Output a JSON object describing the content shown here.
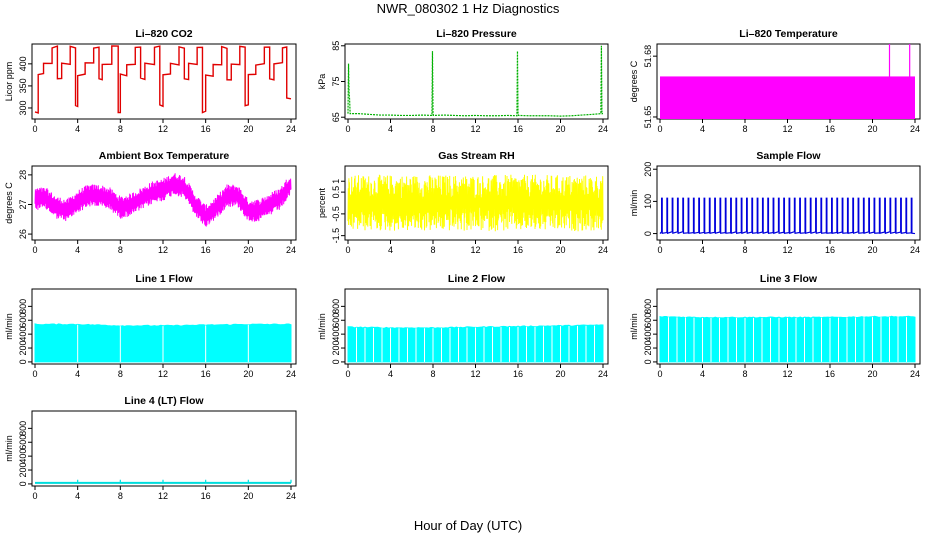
{
  "title": "NWR_080302  1 Hz Diagnostics",
  "xlabel": "Hour of Day (UTC)",
  "chart_data": [
    {
      "type": "line",
      "title": "Li–820 CO2",
      "ylabel": "Licor ppm",
      "color": "#e00000",
      "xlim": [
        0,
        24
      ],
      "ylim": [
        275,
        445
      ],
      "xticks": [
        0,
        4,
        8,
        12,
        16,
        20,
        24
      ],
      "yticks": [
        300,
        350,
        400
      ],
      "series": [
        {
          "x": [
            0,
            0.3,
            0.3,
            0.8,
            0.8,
            1.6,
            1.6,
            2.1,
            2.1,
            2.5,
            2.5,
            3.3,
            3.3,
            3.8,
            3.8,
            4.0,
            4.0,
            4.7,
            4.7,
            5.5,
            5.5,
            6.0,
            6.0,
            6.3,
            6.3,
            7.2,
            7.2,
            7.8,
            7.8,
            8.0,
            8.0,
            8.6,
            8.6,
            9.4,
            9.4,
            9.9,
            9.9,
            10.3,
            10.3,
            11.2,
            11.2,
            11.7,
            11.7,
            12.0,
            12.0,
            12.7,
            12.7,
            13.5,
            13.5,
            14.0,
            14.0,
            14.4,
            14.4,
            15.2,
            15.2,
            15.7,
            15.7,
            16.0,
            16.0,
            16.7,
            16.7,
            17.5,
            17.5,
            18.0,
            18.0,
            18.4,
            18.4,
            19.2,
            19.2,
            19.7,
            19.7,
            20.0,
            20.0,
            20.7,
            20.7,
            21.5,
            21.5,
            22.0,
            22.0,
            22.4,
            22.4,
            23.2,
            23.2,
            23.6,
            23.6,
            24.0
          ],
          "y": [
            290,
            290,
            375,
            375,
            400,
            400,
            438,
            438,
            365,
            365,
            400,
            400,
            438,
            438,
            305,
            305,
            375,
            375,
            400,
            400,
            438,
            438,
            365,
            365,
            400,
            400,
            438,
            438,
            290,
            290,
            375,
            375,
            400,
            400,
            438,
            438,
            365,
            365,
            400,
            400,
            438,
            438,
            305,
            305,
            375,
            375,
            400,
            400,
            438,
            438,
            365,
            365,
            400,
            400,
            438,
            438,
            290,
            290,
            375,
            375,
            400,
            400,
            438,
            438,
            365,
            365,
            400,
            400,
            438,
            438,
            305,
            305,
            375,
            375,
            400,
            400,
            438,
            438,
            365,
            365,
            400,
            400,
            438,
            438,
            320,
            320
          ]
        }
      ]
    },
    {
      "type": "line",
      "title": "Li–820 Pressure",
      "ylabel": "kPa",
      "color": "#00b000",
      "xlim": [
        0,
        24
      ],
      "ylim": [
        64.5,
        85.5
      ],
      "xticks": [
        0,
        4,
        8,
        12,
        16,
        20,
        24
      ],
      "yticks": [
        65,
        75,
        85
      ],
      "series": [
        {
          "x": [
            0,
            0.05,
            0.1,
            0.15,
            0.2,
            0.25,
            0.3,
            1,
            2,
            3,
            4,
            5,
            6,
            7,
            7.9,
            7.95,
            8.0,
            8.05,
            9,
            10,
            11,
            12,
            13,
            14,
            15,
            15.9,
            15.95,
            16.0,
            16.05,
            17,
            18,
            19,
            20,
            21,
            22,
            23,
            23.8,
            23.85,
            23.9,
            23.95,
            24.0
          ],
          "y": [
            66,
            80,
            72,
            70,
            66,
            66,
            66,
            66,
            65.8,
            65.6,
            65.6,
            65.5,
            65.5,
            65.6,
            65.5,
            83.5,
            66,
            65.5,
            65.6,
            65.5,
            65.4,
            65.5,
            65.4,
            65.4,
            65.5,
            65.4,
            83.5,
            66,
            65.5,
            65.4,
            65.4,
            65.4,
            65.3,
            65.4,
            65.6,
            65.8,
            66,
            85,
            66,
            66,
            66
          ]
        }
      ]
    },
    {
      "type": "area",
      "title": "Li–820 Temperature",
      "ylabel": "degrees C",
      "color": "#ff00ff",
      "xlim": [
        0,
        24
      ],
      "ylim": [
        51.649,
        51.686
      ],
      "xticks": [
        0,
        4,
        8,
        12,
        16,
        20,
        24
      ],
      "yticks": [
        51.65,
        51.68
      ],
      "series": [
        {
          "x": [
            0,
            21.5,
            21.6,
            21.7,
            23.4,
            23.5,
            23.6,
            24
          ],
          "y": [
            51.67,
            51.67,
            51.67,
            51.67,
            51.67,
            51.686,
            51.67,
            51.67
          ]
        }
      ]
    },
    {
      "type": "line",
      "title": "Ambient Box Temperature",
      "ylabel": "degrees C",
      "color": "#ff00ff",
      "xlim": [
        0,
        24
      ],
      "ylim": [
        25.8,
        28.3
      ],
      "xticks": [
        0,
        4,
        8,
        12,
        16,
        20,
        24
      ],
      "yticks": [
        26.0,
        27.0,
        28.0
      ],
      "series": [
        {
          "x": [
            0,
            1,
            2,
            3,
            4,
            5,
            6,
            7,
            8,
            9,
            10,
            11,
            12,
            13,
            14,
            15,
            16,
            17,
            18,
            19,
            20,
            21,
            22,
            23,
            24
          ],
          "y": [
            27.2,
            27.2,
            26.9,
            26.8,
            27.1,
            27.3,
            27.3,
            27.2,
            26.9,
            27.0,
            27.2,
            27.4,
            27.5,
            27.7,
            27.6,
            27.0,
            26.6,
            26.9,
            27.3,
            27.3,
            26.8,
            26.8,
            27.0,
            27.2,
            27.7
          ]
        }
      ]
    },
    {
      "type": "line",
      "title": "Gas Stream RH",
      "ylabel": "percent",
      "color": "#ffff00",
      "xlim": [
        0,
        24
      ],
      "ylim": [
        -1.7,
        1.7
      ],
      "xticks": [
        0,
        4,
        8,
        12,
        16,
        20,
        24
      ],
      "yticks": [
        -1.5,
        -0.5,
        0.5,
        1.0
      ],
      "series": [
        {
          "x": [
            0,
            4,
            8,
            12,
            16,
            20,
            24
          ],
          "y": [
            0,
            0,
            0,
            0,
            0,
            0,
            0
          ]
        }
      ]
    },
    {
      "type": "line",
      "title": "Sample Flow",
      "ylabel": "ml/min",
      "color": "#0000dd",
      "xlim": [
        0,
        24
      ],
      "ylim": [
        -20,
        210
      ],
      "xticks": [
        0,
        4,
        8,
        12,
        16,
        20,
        24
      ],
      "yticks": [
        0,
        100,
        200
      ],
      "series": [
        {
          "x": [
            0,
            4,
            8,
            12,
            16,
            20,
            24
          ],
          "y": [
            0,
            0,
            0,
            0,
            0,
            0,
            0
          ]
        },
        {
          "x": [
            0,
            4,
            8,
            12,
            16,
            20,
            24
          ],
          "y": [
            110,
            110,
            110,
            110,
            110,
            110,
            110
          ]
        }
      ]
    },
    {
      "type": "area",
      "title": "Line 1 Flow",
      "ylabel": "ml/min",
      "color": "#00ffff",
      "xlim": [
        0,
        24
      ],
      "ylim": [
        -30,
        1050
      ],
      "xticks": [
        0,
        4,
        8,
        12,
        16,
        20,
        24
      ],
      "yticks": [
        0,
        200,
        400,
        600,
        800
      ],
      "series": [
        {
          "x": [
            0,
            4,
            8,
            12,
            16,
            20,
            24
          ],
          "y": [
            540,
            540,
            520,
            520,
            530,
            540,
            540
          ]
        }
      ]
    },
    {
      "type": "area",
      "title": "Line 2 Flow",
      "ylabel": "ml/min",
      "color": "#00ffff",
      "xlim": [
        0,
        24
      ],
      "ylim": [
        -30,
        1050
      ],
      "xticks": [
        0,
        4,
        8,
        12,
        16,
        20,
        24
      ],
      "yticks": [
        0,
        200,
        400,
        600,
        800
      ],
      "series": [
        {
          "x": [
            0,
            4,
            8,
            12,
            16,
            20,
            24
          ],
          "y": [
            500,
            490,
            490,
            500,
            510,
            520,
            530
          ]
        }
      ]
    },
    {
      "type": "area",
      "title": "Line 3 Flow",
      "ylabel": "ml/min",
      "color": "#00ffff",
      "xlim": [
        0,
        24
      ],
      "ylim": [
        -30,
        1050
      ],
      "xticks": [
        0,
        4,
        8,
        12,
        16,
        20,
        24
      ],
      "yticks": [
        0,
        200,
        400,
        600,
        800
      ],
      "series": [
        {
          "x": [
            0,
            4,
            8,
            12,
            16,
            20,
            24
          ],
          "y": [
            650,
            640,
            640,
            640,
            640,
            650,
            650
          ]
        }
      ]
    },
    {
      "type": "line",
      "title": "Line 4 (LT) Flow",
      "ylabel": "ml/min",
      "color": "#00dddd",
      "xlim": [
        0,
        24
      ],
      "ylim": [
        -30,
        1050
      ],
      "xticks": [
        0,
        4,
        8,
        12,
        16,
        20,
        24
      ],
      "yticks": [
        0,
        200,
        400,
        600,
        800
      ],
      "series": [
        {
          "x": [
            0,
            4,
            8,
            12,
            16,
            20,
            24
          ],
          "y": [
            15,
            15,
            15,
            15,
            15,
            15,
            15
          ]
        }
      ]
    }
  ]
}
